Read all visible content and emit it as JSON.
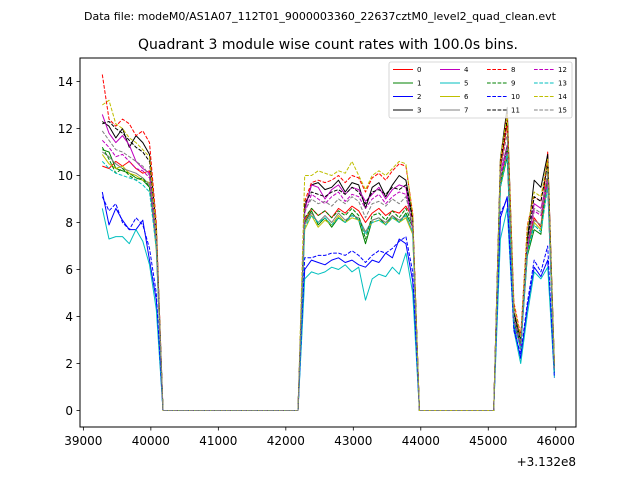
{
  "suptitle": "Data file: modeM0/AS1A07_112T01_9000003360_22637cztM0_level2_quad_clean.evt",
  "chart_data": {
    "type": "line",
    "title": "Quadrant 3 module wise count rates with 100.0s bins.",
    "xlabel": "",
    "ylabel": "",
    "x_offset_label": "+3.132e8",
    "xlim": [
      38950,
      46300
    ],
    "ylim": [
      -0.7,
      15.0
    ],
    "x_ticks": [
      39000,
      40000,
      41000,
      42000,
      43000,
      44000,
      45000,
      46000
    ],
    "x_tick_labels": [
      "39000",
      "40000",
      "41000",
      "42000",
      "43000",
      "44000",
      "45000",
      "46000"
    ],
    "y_ticks": [
      0,
      2,
      4,
      6,
      8,
      10,
      12,
      14
    ],
    "y_tick_labels": [
      "0",
      "2",
      "4",
      "6",
      "8",
      "10",
      "12",
      "14"
    ],
    "legend_position": "top-right",
    "legend_columns": 4,
    "seg_x": [
      [
        39280,
        39380,
        39480,
        39580,
        39680,
        39780,
        39880,
        39980,
        40080,
        40180
      ],
      [
        40180,
        42180
      ],
      [
        42180,
        42280,
        42380,
        42480,
        42580,
        42680,
        42780,
        42880,
        42980,
        43080,
        43180,
        43280,
        43380,
        43480,
        43580,
        43680,
        43780,
        43880,
        43980
      ],
      [
        43980,
        45080
      ],
      [
        45080,
        45180,
        45280,
        45380,
        45480,
        45580,
        45680,
        45780,
        45880,
        45980
      ]
    ],
    "series": [
      {
        "name": "0",
        "color": "#ff0000",
        "dashed": false,
        "segments": [
          [
            10.4,
            10.3,
            10.6,
            10.4,
            10.6,
            10.3,
            10.1,
            10.2,
            7.0,
            0
          ],
          [
            0,
            0
          ],
          [
            0,
            8.1,
            8.6,
            8.3,
            8.5,
            8.2,
            8.6,
            8.4,
            8.7,
            8.5,
            8.0,
            8.4,
            8.6,
            8.3,
            8.5,
            8.4,
            8.7,
            8.2,
            0
          ],
          [
            0,
            0
          ],
          [
            0,
            10.3,
            12.2,
            4.0,
            2.6,
            7.1,
            8.2,
            7.8,
            11.0,
            1.8
          ]
        ]
      },
      {
        "name": "1",
        "color": "#008000",
        "dashed": false,
        "segments": [
          [
            11.1,
            11.0,
            10.3,
            10.2,
            10.1,
            9.9,
            9.8,
            9.5,
            7.3,
            0
          ],
          [
            0,
            0
          ],
          [
            0,
            8.0,
            8.5,
            7.9,
            8.2,
            7.8,
            8.2,
            8.0,
            8.4,
            8.1,
            7.1,
            8.1,
            8.2,
            7.9,
            8.3,
            8.0,
            8.4,
            7.8,
            0
          ],
          [
            0,
            0
          ],
          [
            0,
            9.5,
            10.8,
            3.7,
            2.7,
            6.6,
            7.7,
            7.5,
            9.9,
            1.6
          ]
        ]
      },
      {
        "name": "2",
        "color": "#0000ff",
        "dashed": false,
        "segments": [
          [
            9.3,
            7.9,
            8.6,
            8.1,
            7.7,
            7.7,
            8.1,
            6.4,
            4.7,
            0
          ],
          [
            0,
            0
          ],
          [
            0,
            6.0,
            6.4,
            6.3,
            6.2,
            6.4,
            6.5,
            6.3,
            6.4,
            6.2,
            6.1,
            6.4,
            6.3,
            6.7,
            6.5,
            7.3,
            7.1,
            5.5,
            0
          ],
          [
            0,
            0
          ],
          [
            0,
            8.2,
            9.1,
            3.6,
            2.2,
            4.4,
            6.1,
            5.7,
            6.4,
            1.6
          ]
        ]
      },
      {
        "name": "3",
        "color": "#000000",
        "dashed": false,
        "segments": [
          [
            12.3,
            12.1,
            11.6,
            12.0,
            11.2,
            11.7,
            11.4,
            10.9,
            7.8,
            0
          ],
          [
            0,
            0
          ],
          [
            0,
            8.6,
            9.6,
            9.7,
            9.4,
            9.5,
            9.8,
            9.3,
            9.7,
            9.6,
            8.6,
            9.5,
            9.7,
            9.1,
            9.6,
            10.0,
            9.8,
            8.2,
            0
          ],
          [
            0,
            0
          ],
          [
            0,
            10.7,
            12.9,
            4.2,
            3.0,
            7.3,
            9.8,
            9.5,
            10.9,
            1.9
          ]
        ]
      },
      {
        "name": "4",
        "color": "#bf00bf",
        "dashed": false,
        "segments": [
          [
            12.6,
            11.8,
            11.4,
            11.7,
            11.3,
            10.6,
            10.3,
            10.1,
            7.2,
            0
          ],
          [
            0,
            0
          ],
          [
            0,
            8.5,
            9.6,
            9.5,
            9.0,
            9.4,
            9.6,
            9.2,
            9.5,
            9.4,
            8.9,
            9.2,
            9.5,
            9.0,
            9.4,
            9.6,
            9.5,
            7.7,
            0
          ],
          [
            0,
            0
          ],
          [
            0,
            10.1,
            11.3,
            3.9,
            2.8,
            7.0,
            8.8,
            8.6,
            9.9,
            1.7
          ]
        ]
      },
      {
        "name": "5",
        "color": "#00bfbf",
        "dashed": false,
        "segments": [
          [
            8.6,
            7.3,
            7.4,
            7.4,
            7.1,
            7.7,
            7.2,
            6.2,
            4.3,
            0
          ],
          [
            0,
            0
          ],
          [
            0,
            5.6,
            5.9,
            5.8,
            5.9,
            6.1,
            6.0,
            6.2,
            5.9,
            6.1,
            4.7,
            5.6,
            5.8,
            5.7,
            6.1,
            5.8,
            6.7,
            5.0,
            0
          ],
          [
            0,
            0
          ],
          [
            0,
            7.3,
            8.6,
            3.4,
            2.0,
            4.1,
            5.9,
            5.6,
            6.1,
            1.4
          ]
        ]
      },
      {
        "name": "6",
        "color": "#bfbf00",
        "dashed": false,
        "segments": [
          [
            10.9,
            10.5,
            10.3,
            10.4,
            10.1,
            10.0,
            9.8,
            9.7,
            6.8,
            0
          ],
          [
            0,
            0
          ],
          [
            0,
            7.7,
            8.3,
            7.8,
            8.1,
            7.9,
            8.3,
            8.0,
            8.2,
            8.1,
            7.6,
            8.0,
            8.1,
            7.9,
            8.2,
            8.0,
            8.2,
            7.5,
            0
          ],
          [
            0,
            0
          ],
          [
            0,
            9.6,
            11.0,
            3.8,
            2.7,
            6.8,
            8.0,
            7.7,
            9.6,
            1.7
          ]
        ]
      },
      {
        "name": "7",
        "color": "#808080",
        "dashed": false,
        "segments": [
          [
            11.0,
            10.8,
            10.5,
            10.3,
            10.2,
            10.1,
            9.9,
            9.6,
            7.1,
            0
          ],
          [
            0,
            0
          ],
          [
            0,
            7.9,
            8.4,
            8.0,
            8.3,
            8.0,
            8.4,
            8.1,
            8.3,
            8.2,
            7.6,
            8.1,
            8.2,
            8.0,
            8.3,
            8.1,
            8.3,
            7.6,
            0
          ],
          [
            0,
            0
          ],
          [
            0,
            9.8,
            11.1,
            3.9,
            2.8,
            6.9,
            8.1,
            7.9,
            9.7,
            1.7
          ]
        ]
      },
      {
        "name": "8",
        "color": "#ff0000",
        "dashed": true,
        "segments": [
          [
            14.3,
            12.4,
            12.1,
            12.4,
            12.2,
            11.7,
            11.9,
            11.4,
            8.0,
            0
          ],
          [
            0,
            0
          ],
          [
            0,
            8.9,
            9.7,
            9.8,
            9.7,
            9.8,
            10.0,
            9.7,
            10.0,
            9.9,
            9.3,
            9.9,
            10.1,
            9.8,
            10.2,
            10.5,
            10.4,
            8.4,
            0
          ],
          [
            0,
            0
          ],
          [
            0,
            10.6,
            12.6,
            4.6,
            3.2,
            7.9,
            9.1,
            8.9,
            10.6,
            2.0
          ]
        ]
      },
      {
        "name": "9",
        "color": "#008000",
        "dashed": true,
        "segments": [
          [
            11.2,
            10.7,
            10.1,
            10.3,
            10.0,
            9.8,
            9.9,
            9.5,
            7.2,
            0
          ],
          [
            0,
            0
          ],
          [
            0,
            8.2,
            8.6,
            8.3,
            8.5,
            8.2,
            8.5,
            8.3,
            8.6,
            8.3,
            7.3,
            8.3,
            8.4,
            8.1,
            8.5,
            8.2,
            8.6,
            7.9,
            0
          ],
          [
            0,
            0
          ],
          [
            0,
            9.7,
            11.2,
            3.8,
            2.8,
            6.8,
            7.9,
            7.6,
            10.2,
            1.7
          ]
        ]
      },
      {
        "name": "10",
        "color": "#0000ff",
        "dashed": true,
        "segments": [
          [
            9.1,
            8.5,
            8.8,
            8.0,
            7.7,
            8.2,
            7.9,
            6.9,
            5.0,
            0
          ],
          [
            0,
            0
          ],
          [
            0,
            6.5,
            6.5,
            6.6,
            6.6,
            6.7,
            6.7,
            6.6,
            6.8,
            6.6,
            6.3,
            6.6,
            6.8,
            6.7,
            6.9,
            7.2,
            7.4,
            5.9,
            0
          ],
          [
            0,
            0
          ],
          [
            0,
            8.4,
            9.0,
            3.4,
            2.4,
            4.6,
            6.4,
            5.9,
            7.0,
            1.4
          ]
        ]
      },
      {
        "name": "11",
        "color": "#000000",
        "dashed": true,
        "segments": [
          [
            12.2,
            12.3,
            12.0,
            11.8,
            11.5,
            11.2,
            11.0,
            10.6,
            7.6,
            0
          ],
          [
            0,
            0
          ],
          [
            0,
            8.8,
            9.3,
            9.2,
            9.1,
            9.3,
            9.4,
            9.2,
            9.5,
            9.3,
            8.8,
            9.3,
            9.4,
            9.2,
            9.5,
            9.4,
            9.6,
            8.1,
            0
          ],
          [
            0,
            0
          ],
          [
            0,
            10.5,
            12.4,
            4.1,
            2.9,
            7.2,
            9.1,
            8.9,
            10.5,
            1.9
          ]
        ]
      },
      {
        "name": "12",
        "color": "#bf00bf",
        "dashed": true,
        "segments": [
          [
            11.5,
            11.2,
            10.8,
            10.9,
            10.6,
            10.3,
            10.2,
            9.9,
            7.1,
            0
          ],
          [
            0,
            0
          ],
          [
            0,
            8.4,
            9.2,
            9.0,
            8.8,
            9.1,
            9.3,
            8.9,
            9.2,
            9.1,
            8.6,
            9.0,
            9.2,
            8.8,
            9.1,
            9.3,
            9.2,
            7.8,
            0
          ],
          [
            0,
            0
          ],
          [
            0,
            10.0,
            11.0,
            3.8,
            2.7,
            6.9,
            8.5,
            8.3,
            9.7,
            1.7
          ]
        ]
      },
      {
        "name": "13",
        "color": "#00bfbf",
        "dashed": true,
        "segments": [
          [
            10.6,
            10.3,
            10.1,
            10.0,
            9.9,
            9.8,
            9.6,
            9.3,
            6.9,
            0
          ],
          [
            0,
            0
          ],
          [
            0,
            7.8,
            8.3,
            8.0,
            8.2,
            7.9,
            8.2,
            8.0,
            8.3,
            8.1,
            7.5,
            8.0,
            8.1,
            7.9,
            8.2,
            8.0,
            8.3,
            7.6,
            0
          ],
          [
            0,
            0
          ],
          [
            0,
            9.5,
            10.9,
            3.7,
            2.6,
            6.7,
            7.9,
            7.6,
            9.5,
            1.6
          ]
        ]
      },
      {
        "name": "14",
        "color": "#bfbf00",
        "dashed": true,
        "segments": [
          [
            13.0,
            13.2,
            12.2,
            12.0,
            11.6,
            11.4,
            11.1,
            10.8,
            7.7,
            0
          ],
          [
            0,
            0
          ],
          [
            0,
            10.0,
            10.0,
            10.2,
            10.1,
            10.0,
            10.2,
            10.1,
            10.6,
            10.0,
            9.4,
            10.0,
            10.2,
            10.0,
            10.3,
            10.6,
            10.5,
            8.3,
            0
          ],
          [
            0,
            0
          ],
          [
            0,
            10.7,
            12.6,
            4.5,
            3.1,
            7.8,
            9.3,
            9.1,
            10.7,
            2.0
          ]
        ]
      },
      {
        "name": "15",
        "color": "#808080",
        "dashed": true,
        "segments": [
          [
            11.9,
            11.5,
            11.1,
            11.0,
            10.8,
            10.6,
            10.4,
            10.0,
            7.3,
            0
          ],
          [
            0,
            0
          ],
          [
            0,
            8.5,
            9.0,
            8.8,
            8.9,
            8.7,
            9.0,
            8.8,
            9.1,
            8.9,
            8.2,
            8.8,
            8.9,
            8.7,
            9.0,
            8.8,
            9.1,
            7.9,
            0
          ],
          [
            0,
            0
          ],
          [
            0,
            10.2,
            11.8,
            4.0,
            2.9,
            7.1,
            8.6,
            8.4,
            10.1,
            1.8
          ]
        ]
      }
    ]
  }
}
